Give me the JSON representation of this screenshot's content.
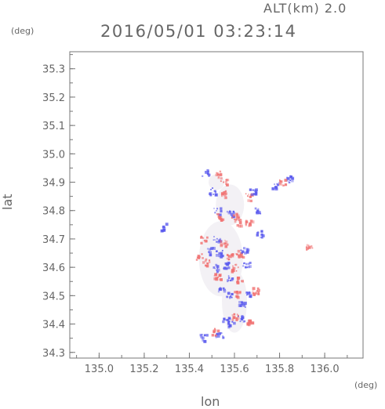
{
  "header": {
    "alt_label": "ALT(km) 2.0",
    "timestamp": "2016/05/01 03:23:14",
    "y_unit": "(deg)",
    "x_unit": "(deg)"
  },
  "colors": {
    "frame": "#777777",
    "text": "#666666",
    "negative": "#5a5aee",
    "positive": "#f07070"
  },
  "chart_data": {
    "type": "heatmap",
    "title": "2016/05/01 03:23:14",
    "subtitle": "ALT(km) 2.0",
    "xlabel": "lon",
    "ylabel": "lat",
    "xunit": "(deg)",
    "yunit": "(deg)",
    "xlim": [
      134.87,
      136.17
    ],
    "ylim": [
      34.28,
      35.36
    ],
    "xticks": [
      "135.0",
      "135.2",
      "135.4",
      "135.6",
      "135.8",
      "136.0"
    ],
    "yticks": [
      "34.3",
      "34.4",
      "34.5",
      "34.6",
      "34.7",
      "34.8",
      "34.9",
      "35.0",
      "35.1",
      "35.2",
      "35.3"
    ],
    "grid": false,
    "clusters": [
      {
        "lon": 135.47,
        "lat": 34.935,
        "sign": "neg"
      },
      {
        "lon": 135.52,
        "lat": 34.93,
        "sign": "pos"
      },
      {
        "lon": 135.55,
        "lat": 34.905,
        "sign": "pos"
      },
      {
        "lon": 135.5,
        "lat": 34.87,
        "sign": "neg"
      },
      {
        "lon": 135.55,
        "lat": 34.86,
        "sign": "pos"
      },
      {
        "lon": 135.52,
        "lat": 34.8,
        "sign": "neg"
      },
      {
        "lon": 135.53,
        "lat": 34.78,
        "sign": "pos"
      },
      {
        "lon": 135.58,
        "lat": 34.79,
        "sign": "neg"
      },
      {
        "lon": 135.6,
        "lat": 34.78,
        "sign": "pos"
      },
      {
        "lon": 135.61,
        "lat": 34.76,
        "sign": "pos"
      },
      {
        "lon": 135.66,
        "lat": 34.85,
        "sign": "pos"
      },
      {
        "lon": 135.68,
        "lat": 34.87,
        "sign": "neg"
      },
      {
        "lon": 135.7,
        "lat": 34.8,
        "sign": "neg"
      },
      {
        "lon": 135.66,
        "lat": 34.76,
        "sign": "pos"
      },
      {
        "lon": 135.71,
        "lat": 34.72,
        "sign": "neg"
      },
      {
        "lon": 135.78,
        "lat": 34.89,
        "sign": "neg"
      },
      {
        "lon": 135.84,
        "lat": 34.915,
        "sign": "neg"
      },
      {
        "lon": 135.81,
        "lat": 34.9,
        "sign": "pos"
      },
      {
        "lon": 135.28,
        "lat": 34.745,
        "sign": "neg"
      },
      {
        "lon": 135.93,
        "lat": 34.672,
        "sign": "pos"
      },
      {
        "lon": 135.46,
        "lat": 34.7,
        "sign": "pos"
      },
      {
        "lon": 135.52,
        "lat": 34.7,
        "sign": "neg"
      },
      {
        "lon": 135.55,
        "lat": 34.69,
        "sign": "pos"
      },
      {
        "lon": 135.49,
        "lat": 34.66,
        "sign": "neg"
      },
      {
        "lon": 135.53,
        "lat": 34.65,
        "sign": "neg"
      },
      {
        "lon": 135.58,
        "lat": 34.64,
        "sign": "pos"
      },
      {
        "lon": 135.62,
        "lat": 34.65,
        "sign": "pos"
      },
      {
        "lon": 135.64,
        "lat": 34.66,
        "sign": "neg"
      },
      {
        "lon": 135.44,
        "lat": 34.64,
        "sign": "pos"
      },
      {
        "lon": 135.47,
        "lat": 34.62,
        "sign": "pos"
      },
      {
        "lon": 135.51,
        "lat": 34.6,
        "sign": "neg"
      },
      {
        "lon": 135.56,
        "lat": 34.61,
        "sign": "neg"
      },
      {
        "lon": 135.6,
        "lat": 34.6,
        "sign": "pos"
      },
      {
        "lon": 135.65,
        "lat": 34.61,
        "sign": "neg"
      },
      {
        "lon": 135.52,
        "lat": 34.57,
        "sign": "pos"
      },
      {
        "lon": 135.58,
        "lat": 34.56,
        "sign": "neg"
      },
      {
        "lon": 135.62,
        "lat": 34.56,
        "sign": "pos"
      },
      {
        "lon": 135.54,
        "lat": 34.52,
        "sign": "neg"
      },
      {
        "lon": 135.57,
        "lat": 34.505,
        "sign": "neg"
      },
      {
        "lon": 135.61,
        "lat": 34.51,
        "sign": "pos"
      },
      {
        "lon": 135.66,
        "lat": 34.51,
        "sign": "neg"
      },
      {
        "lon": 135.69,
        "lat": 34.52,
        "sign": "pos"
      },
      {
        "lon": 135.63,
        "lat": 34.47,
        "sign": "neg"
      },
      {
        "lon": 135.56,
        "lat": 34.42,
        "sign": "neg"
      },
      {
        "lon": 135.6,
        "lat": 34.43,
        "sign": "pos"
      },
      {
        "lon": 135.63,
        "lat": 34.42,
        "sign": "neg"
      },
      {
        "lon": 135.66,
        "lat": 34.41,
        "sign": "pos"
      },
      {
        "lon": 135.58,
        "lat": 34.4,
        "sign": "neg"
      },
      {
        "lon": 135.51,
        "lat": 34.375,
        "sign": "pos"
      },
      {
        "lon": 135.53,
        "lat": 34.36,
        "sign": "neg"
      },
      {
        "lon": 135.46,
        "lat": 34.355,
        "sign": "neg"
      }
    ]
  }
}
